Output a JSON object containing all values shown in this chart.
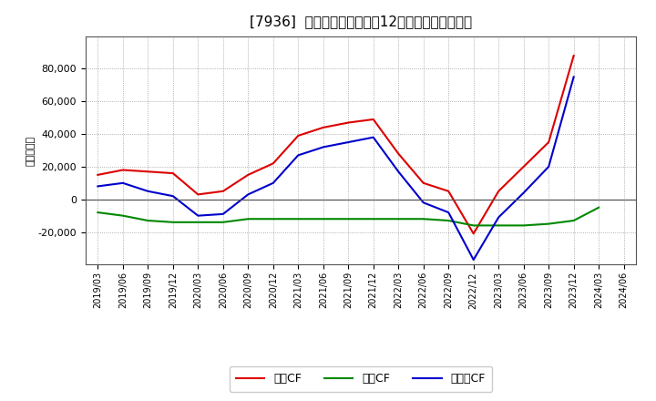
{
  "title": "[7936]  キャッシュフローの12か月移動合計の推移",
  "ylabel": "（百万円）",
  "background_color": "#ffffff",
  "plot_bg_color": "#ffffff",
  "grid_color": "#999999",
  "x_labels": [
    "2019/03",
    "2019/06",
    "2019/09",
    "2019/12",
    "2020/03",
    "2020/06",
    "2020/09",
    "2020/12",
    "2021/03",
    "2021/06",
    "2021/09",
    "2021/12",
    "2022/03",
    "2022/06",
    "2022/09",
    "2022/12",
    "2023/03",
    "2023/06",
    "2023/09",
    "2023/12",
    "2024/03",
    "2024/06"
  ],
  "operating_cf": [
    15000,
    18000,
    17000,
    16000,
    3000,
    5000,
    15000,
    22000,
    39000,
    44000,
    47000,
    49000,
    28000,
    10000,
    5000,
    -21000,
    5000,
    20000,
    35000,
    88000,
    null,
    null
  ],
  "investing_cf": [
    -8000,
    -10000,
    -13000,
    -14000,
    -14000,
    -14000,
    -12000,
    -12000,
    -12000,
    -12000,
    -12000,
    -12000,
    -12000,
    -12000,
    -13000,
    -16000,
    -16000,
    -16000,
    -15000,
    -13000,
    -5000,
    null
  ],
  "free_cf": [
    8000,
    10000,
    5000,
    2000,
    -10000,
    -9000,
    3000,
    10000,
    27000,
    32000,
    35000,
    38000,
    17000,
    -2000,
    -8000,
    -37000,
    -11000,
    4000,
    20000,
    75000,
    null,
    null
  ],
  "operating_color": "#dd0000",
  "investing_color": "#008800",
  "free_color": "#0000cc",
  "ylim": [
    -40000,
    100000
  ],
  "yticks": [
    -20000,
    0,
    20000,
    40000,
    60000,
    80000
  ],
  "legend_labels": [
    "営業CF",
    "投資CF",
    "フリーCF"
  ]
}
